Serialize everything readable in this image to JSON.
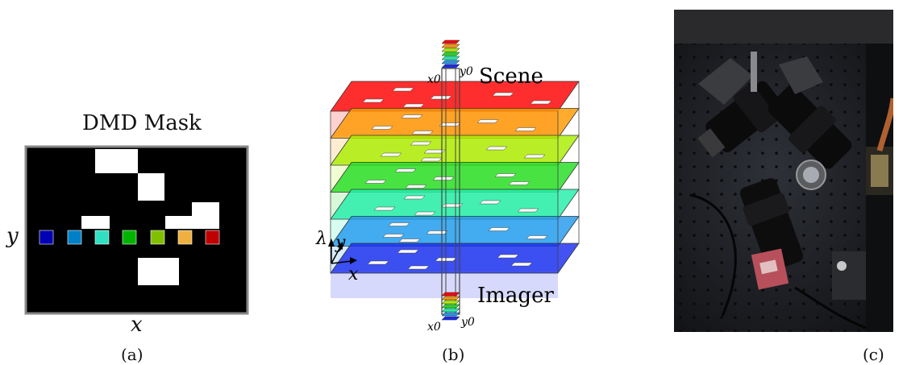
{
  "panel_a": {
    "title": "DMD Mask",
    "x_label": "x",
    "y_label": "y",
    "caption": "(a)",
    "pixel_colors": [
      "#0000b4",
      "#0080c8",
      "#30e0c0",
      "#00b400",
      "#80c000",
      "#f0b040",
      "#c00000"
    ]
  },
  "panel_b": {
    "scene_label": "Scene",
    "imager_label": "Imager",
    "x0_top": "x0",
    "y0_top": "y0",
    "x0_bottom": "x0",
    "y0_bottom": "y0",
    "axis_lambda": "λ",
    "axis_y": "y",
    "axis_x": "x",
    "caption": "(b)",
    "layer_colors": [
      "#ff0000",
      "#ff9900",
      "#aaee00",
      "#22dd22",
      "#22eeaa",
      "#2299ee",
      "#1a2cee"
    ]
  },
  "panel_c": {
    "caption": "(c)"
  }
}
